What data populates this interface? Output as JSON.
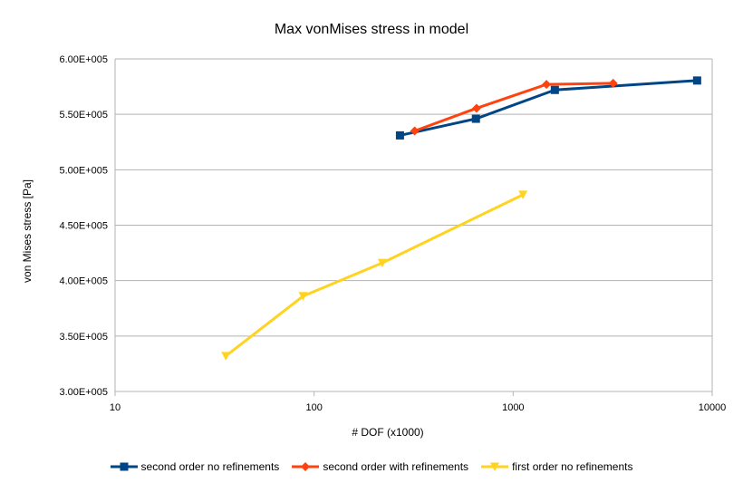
{
  "chart_data": {
    "type": "line",
    "title": "Max vonMises stress in model",
    "xlabel": "# DOF (x1000)",
    "ylabel": "von Mises stress [Pa]",
    "x_scale": "log",
    "xlim": [
      10,
      10000
    ],
    "ylim": [
      300000,
      600000
    ],
    "x_ticks": [
      10,
      100,
      1000,
      10000
    ],
    "x_tick_labels": [
      "10",
      "100",
      "1000",
      "10000"
    ],
    "y_ticks": [
      300000,
      350000,
      400000,
      450000,
      500000,
      550000,
      600000
    ],
    "y_tick_labels": [
      "3.00E+005",
      "3.50E+005",
      "4.00E+005",
      "4.50E+005",
      "5.00E+005",
      "5.50E+005",
      "6.00E+005"
    ],
    "grid": "horizontal",
    "legend_position": "bottom",
    "series": [
      {
        "name": "second order no refinements",
        "color": "#004586",
        "marker": "square",
        "x": [
          270,
          650,
          1620,
          8400
        ],
        "y": [
          531000,
          546000,
          572000,
          580500
        ]
      },
      {
        "name": "second order with refinements",
        "color": "#ff420e",
        "marker": "diamond",
        "x": [
          320,
          655,
          1470,
          3180
        ],
        "y": [
          535000,
          555500,
          577000,
          578000
        ]
      },
      {
        "name": "first order no refinements",
        "color": "#ffd320",
        "marker": "triangle-down",
        "x": [
          36,
          88,
          220,
          1120
        ],
        "y": [
          332000,
          386000,
          416000,
          477500
        ]
      }
    ]
  }
}
